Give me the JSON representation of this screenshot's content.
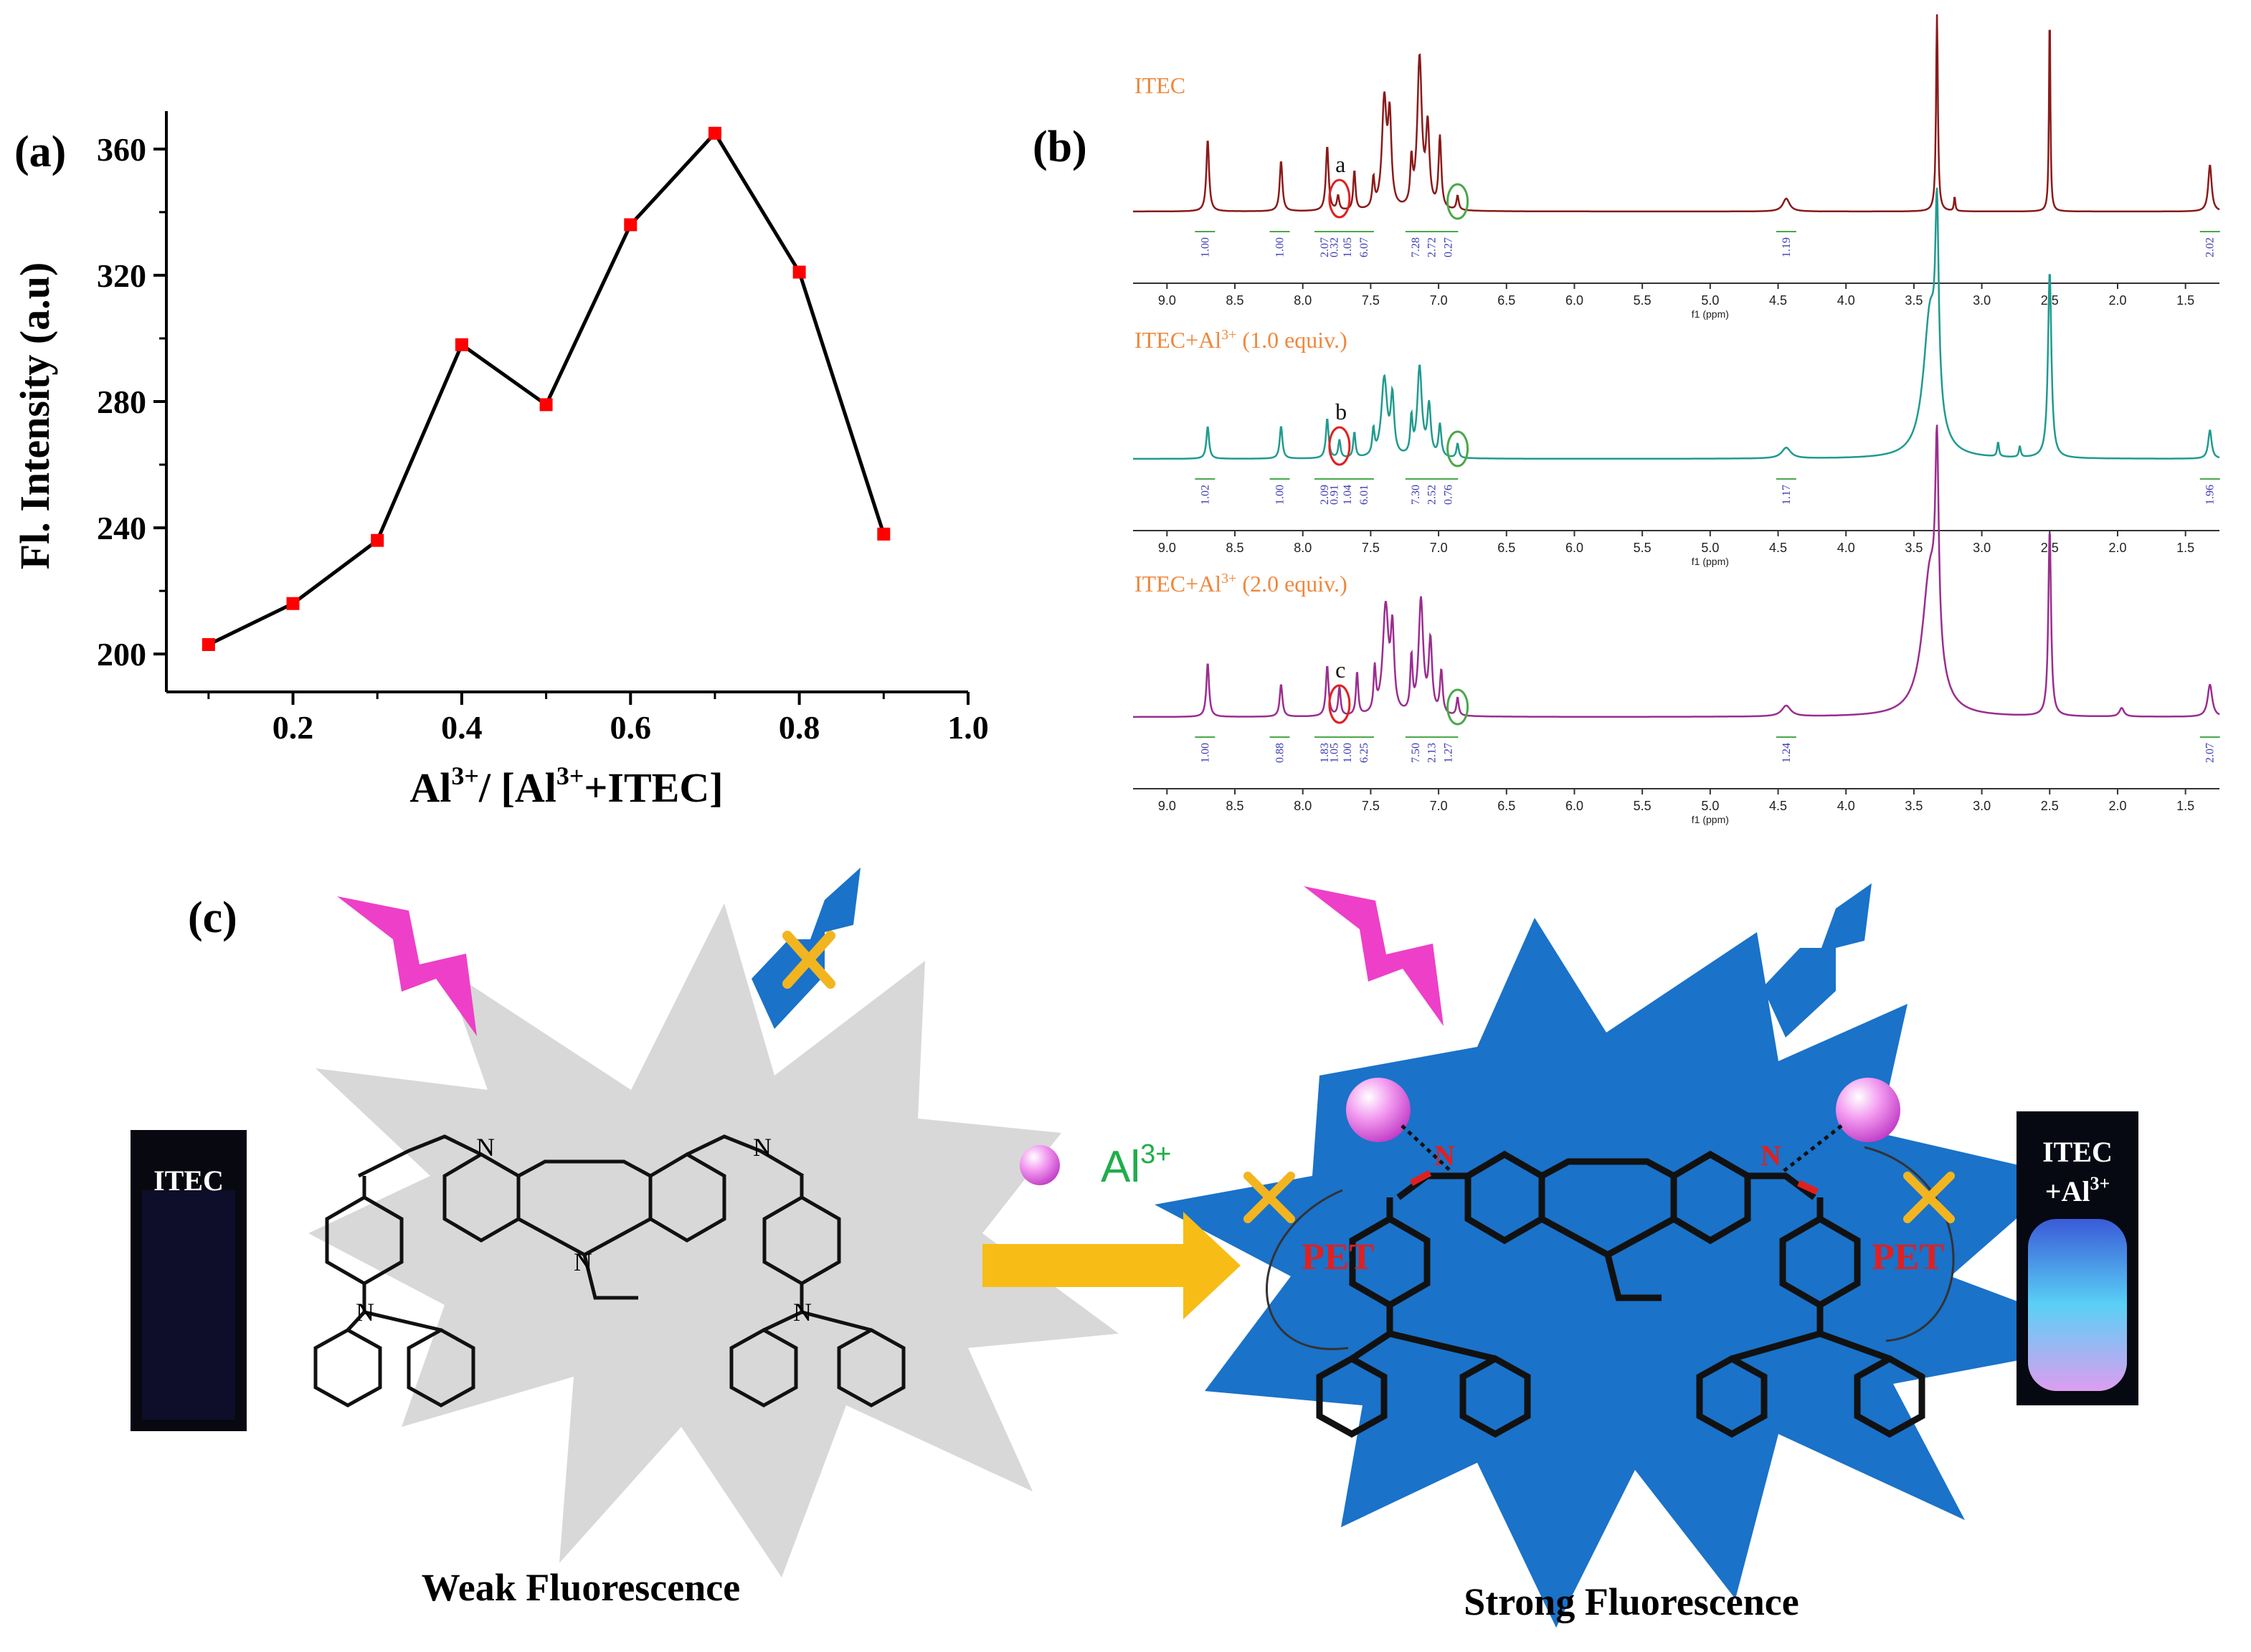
{
  "panel_labels": {
    "a": "(a)",
    "b": "(b)",
    "c": "(c)"
  },
  "chart_data": [
    {
      "type": "line",
      "panel": "(a)",
      "title": "",
      "xlabel": "Al3+/ [Al3+ +ITEC]",
      "xlabel_parts": {
        "base": "Al",
        "sup1": "3+",
        "mid": "/ [Al",
        "sup2": "3+",
        "end": "+ITEC]"
      },
      "ylabel": "Fl. Intensity (a.u)",
      "xlim": [
        0.05,
        1.0
      ],
      "ylim": [
        188,
        372
      ],
      "xticks": [
        "0.2",
        "0.4",
        "0.6",
        "0.8",
        "1.0"
      ],
      "xtick_values": [
        0.2,
        0.4,
        0.6,
        0.8,
        1.0
      ],
      "yticks": [
        "200",
        "240",
        "280",
        "320",
        "360"
      ],
      "ytick_values": [
        200,
        240,
        280,
        320,
        360
      ],
      "series": [
        {
          "x": [
            0.1,
            0.2,
            0.3,
            0.4,
            0.5,
            0.6,
            0.7,
            0.8,
            0.9
          ],
          "y": [
            203,
            216,
            236,
            298,
            279,
            336,
            365,
            321,
            238
          ],
          "line_color": "#000000",
          "marker_color": "#ff0000"
        }
      ]
    },
    {
      "type": "line",
      "panel": "(b)",
      "title": "",
      "spectra": [
        {
          "label": "ITEC",
          "label_parts": {
            "base": "ITEC",
            "sup": "",
            "tail": ""
          },
          "color": "#8b1a1a",
          "peak_letter": "a",
          "xlabel": "f1 (ppm)",
          "integrations": [
            "1.00",
            "1.00",
            "2.07",
            "0.32",
            "1.05",
            "6.07",
            "7.28",
            "2.72",
            "0.27",
            "1.19",
            "2.02"
          ]
        },
        {
          "label": "ITEC+Al3+ (1.0 equiv.)",
          "label_parts": {
            "base": "ITEC+Al",
            "sup": "3+",
            "tail": " (1.0 equiv.)"
          },
          "color": "#1f9b8f",
          "peak_letter": "b",
          "xlabel": "f1 (ppm)",
          "integrations": [
            "1.02",
            "1.00",
            "2.09",
            "0.91",
            "1.04",
            "6.01",
            "7.30",
            "2.52",
            "0.76",
            "1.17",
            "1.96"
          ]
        },
        {
          "label": "ITEC+Al3+ (2.0 equiv.)",
          "label_parts": {
            "base": "ITEC+Al",
            "sup": "3+",
            "tail": " (2.0 equiv.)"
          },
          "color": "#9b2d8f",
          "peak_letter": "c",
          "xlabel": "f1 (ppm)",
          "integrations": [
            "1.00",
            "0.88",
            "1.83",
            "1.05",
            "1.00",
            "6.25",
            "7.50",
            "2.13",
            "1.27",
            "1.24",
            "2.07"
          ]
        }
      ],
      "xticks": [
        "9.0",
        "8.5",
        "8.0",
        "7.5",
        "7.0",
        "6.5",
        "6.0",
        "5.5",
        "5.0",
        "4.5",
        "4.0",
        "3.5",
        "3.0",
        "2.5",
        "2.0",
        "1.5"
      ],
      "xlim": [
        9.25,
        1.25
      ],
      "label_color": "#f0873c"
    }
  ],
  "scheme": {
    "left_caption": "Weak  Fluorescence",
    "right_caption": "Strong Fluorescence",
    "ion_label": {
      "base": "Al",
      "sup": "3+"
    },
    "pet_label": "PET",
    "vial_left": "ITEC",
    "vial_right_line1": "ITEC",
    "vial_right_line2": {
      "base": "+Al",
      "sup": "3+"
    },
    "atom_N": "N",
    "colors": {
      "gray_star": "#d8d8d8",
      "blue_star": "#1a72c9",
      "magenta_bolt": "#ee3fc8",
      "blue_bolt": "#1a72c9",
      "cross": "#f2b520",
      "arrow": "#f7bd16",
      "pet": "#e02020",
      "ion_text": "#1fae4a"
    }
  }
}
